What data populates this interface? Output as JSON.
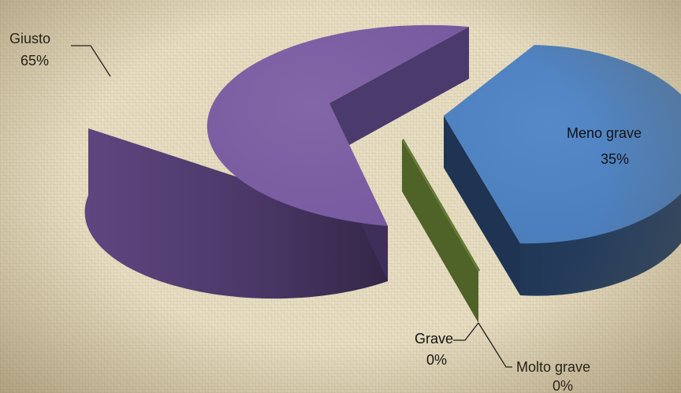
{
  "chart_data": {
    "type": "pie",
    "title": "",
    "legend": "none",
    "slices": [
      {
        "label": "Giusto",
        "value": 65,
        "value_label": "65%",
        "color": "#7b5e9c"
      },
      {
        "label": "Meno grave",
        "value": 35,
        "value_label": "35%",
        "color": "#4e81bd"
      },
      {
        "label": "Grave",
        "value": 0,
        "value_label": "0%",
        "color": "#4f6228"
      },
      {
        "label": "Molto grave",
        "value": 0,
        "value_label": "0%",
        "color": "#d99694"
      }
    ]
  }
}
